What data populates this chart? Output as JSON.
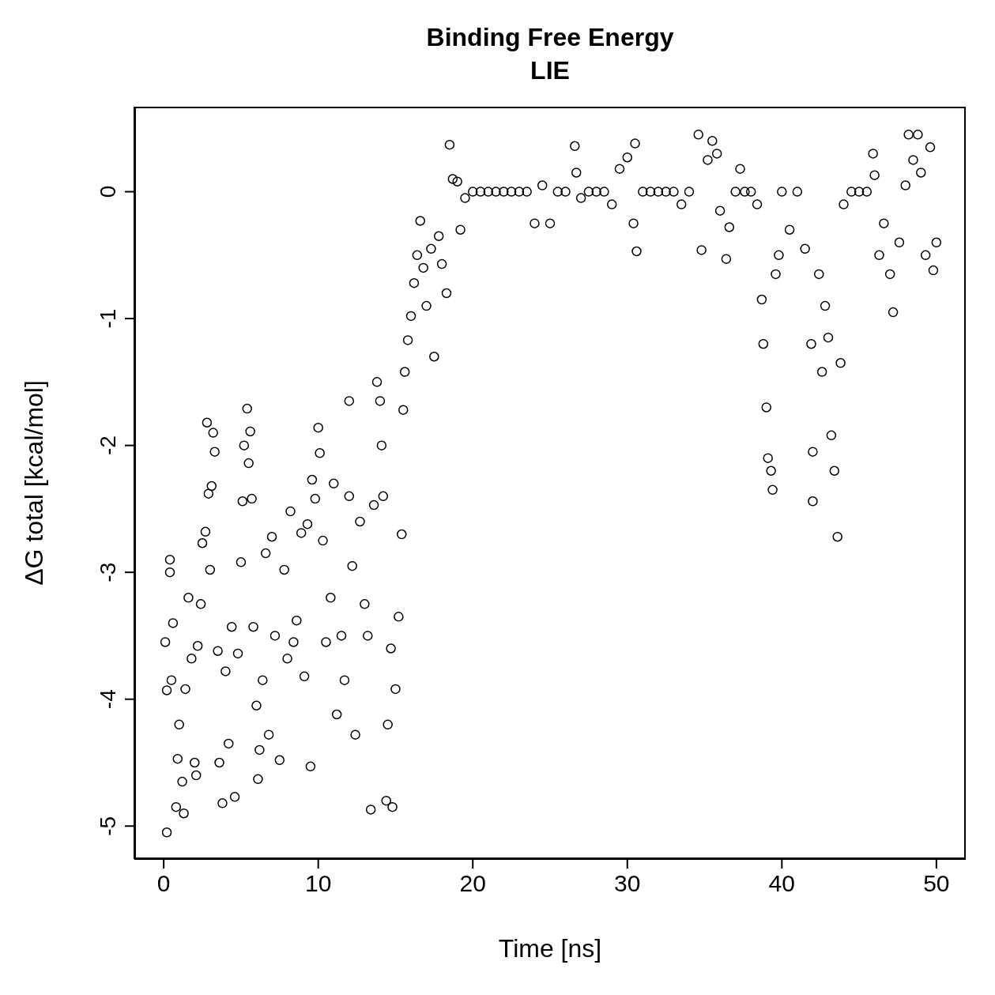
{
  "chart_data": {
    "type": "scatter",
    "title": "Binding Free Energy\nLIE",
    "xlabel": "Time [ns]",
    "ylabel": "ΔG total [kcal/mol]",
    "marker": "circle",
    "xlim": [
      -1.9,
      51.9
    ],
    "ylim": [
      -5.26,
      0.67
    ],
    "xticks": [
      0,
      10,
      20,
      30,
      40,
      50
    ],
    "yticks": [
      -5,
      -4,
      -3,
      -2,
      -1,
      0
    ],
    "series": [
      {
        "color": "#000000",
        "x": [
          0.2,
          0.1,
          0.2,
          0.4,
          0.4,
          0.5,
          0.6,
          0.8,
          0.9,
          1.0,
          1.2,
          1.3,
          1.4,
          1.6,
          1.8,
          2.0,
          2.1,
          2.2,
          2.4,
          2.5,
          2.7,
          2.8,
          2.9,
          3.0,
          3.1,
          3.2,
          3.3,
          3.5,
          3.6,
          3.8,
          4.0,
          4.2,
          4.4,
          4.6,
          4.8,
          5.0,
          5.1,
          5.2,
          5.4,
          5.5,
          5.6,
          5.7,
          5.8,
          6.0,
          6.1,
          6.2,
          6.4,
          6.6,
          6.8,
          7.0,
          7.2,
          7.5,
          7.8,
          8.0,
          8.2,
          8.4,
          8.6,
          8.9,
          9.1,
          9.3,
          9.5,
          9.6,
          9.8,
          10.0,
          10.1,
          10.3,
          10.5,
          10.8,
          11.0,
          11.2,
          11.5,
          11.7,
          12.0,
          12.0,
          12.2,
          12.4,
          12.7,
          13.0,
          13.2,
          13.4,
          13.6,
          13.8,
          14.0,
          14.1,
          14.2,
          14.4,
          14.5,
          14.7,
          14.8,
          15.0,
          15.2,
          15.4,
          15.5,
          15.6,
          15.8,
          16.0,
          16.2,
          16.4,
          16.6,
          16.8,
          17.0,
          17.3,
          17.5,
          17.8,
          18.0,
          18.3,
          18.5,
          18.7,
          19.0,
          19.2,
          19.5,
          20,
          20.5,
          21,
          21.5,
          22,
          22.5,
          23,
          23.5,
          24,
          24.5,
          25,
          25.5,
          26,
          26.6,
          26.7,
          27,
          27.5,
          28,
          28.5,
          29,
          29.5,
          30.0,
          30.4,
          30.5,
          30.6,
          31,
          31.5,
          32,
          32.5,
          33,
          33.5,
          34,
          34.6,
          34.8,
          35.2,
          35.5,
          35.8,
          36.0,
          36.4,
          36.6,
          37,
          37.3,
          37.6,
          38,
          38.4,
          38.7,
          38.8,
          39.0,
          39.1,
          39.3,
          39.4,
          39.6,
          39.8,
          40,
          40.5,
          41,
          41.5,
          41.9,
          42.0,
          42.0,
          42.4,
          42.6,
          42.8,
          43.0,
          43.2,
          43.4,
          43.6,
          43.8,
          44.0,
          44.5,
          45,
          45.5,
          45.9,
          46.0,
          46.3,
          46.6,
          47.0,
          47.2,
          47.6,
          48.0,
          48.2,
          48.5,
          48.8,
          49.0,
          49.3,
          49.6,
          49.8,
          50.0
        ],
        "values": [
          -5.05,
          -3.55,
          -3.93,
          -2.9,
          -3.0,
          -3.85,
          -3.4,
          -4.85,
          -4.47,
          -4.2,
          -4.65,
          -4.9,
          -3.92,
          -3.2,
          -3.68,
          -4.5,
          -4.6,
          -3.58,
          -3.25,
          -2.77,
          -2.68,
          -1.82,
          -2.38,
          -2.98,
          -2.32,
          -1.9,
          -2.05,
          -3.62,
          -4.5,
          -4.82,
          -3.78,
          -4.35,
          -3.43,
          -4.77,
          -3.64,
          -2.92,
          -2.44,
          -2.0,
          -1.71,
          -2.14,
          -1.89,
          -2.42,
          -3.43,
          -4.05,
          -4.63,
          -4.4,
          -3.85,
          -2.85,
          -4.28,
          -2.72,
          -3.5,
          -4.48,
          -2.98,
          -3.68,
          -2.52,
          -3.55,
          -3.38,
          -2.69,
          -3.82,
          -2.62,
          -4.53,
          -2.27,
          -2.42,
          -1.86,
          -2.06,
          -2.75,
          -3.55,
          -3.2,
          -2.3,
          -4.12,
          -3.5,
          -3.85,
          -2.4,
          -1.65,
          -2.95,
          -4.28,
          -2.6,
          -3.25,
          -3.5,
          -4.87,
          -2.47,
          -1.5,
          -1.65,
          -2.0,
          -2.4,
          -4.8,
          -4.2,
          -3.6,
          -4.85,
          -3.92,
          -3.35,
          -2.7,
          -1.72,
          -1.42,
          -1.17,
          -0.98,
          -0.72,
          -0.5,
          -0.23,
          -0.6,
          -0.9,
          -0.45,
          -1.3,
          -0.35,
          -0.57,
          -0.8,
          0.37,
          0.1,
          0.08,
          -0.3,
          -0.05,
          0,
          0,
          0,
          0,
          0,
          0,
          0,
          0,
          -0.25,
          0.05,
          -0.25,
          0,
          0,
          0.36,
          0.15,
          -0.05,
          0,
          0,
          0,
          -0.1,
          0.18,
          0.27,
          -0.25,
          0.38,
          -0.47,
          0,
          0,
          0,
          0,
          0,
          -0.1,
          0,
          0.45,
          -0.46,
          0.25,
          0.4,
          0.3,
          -0.15,
          -0.53,
          -0.28,
          0,
          0.18,
          0,
          0,
          -0.1,
          -0.85,
          -1.2,
          -1.7,
          -2.1,
          -2.2,
          -2.35,
          -0.65,
          -0.5,
          0,
          -0.3,
          0,
          -0.45,
          -1.2,
          -2.05,
          -2.44,
          -0.65,
          -1.42,
          -0.9,
          -1.15,
          -1.92,
          -2.2,
          -2.72,
          -1.35,
          -0.1,
          0,
          0,
          0,
          0.3,
          0.13,
          -0.5,
          -0.25,
          -0.65,
          -0.95,
          -0.4,
          0.05,
          0.45,
          0.25,
          0.45,
          0.15,
          -0.5,
          0.35,
          -0.62,
          -0.4
        ]
      }
    ]
  }
}
